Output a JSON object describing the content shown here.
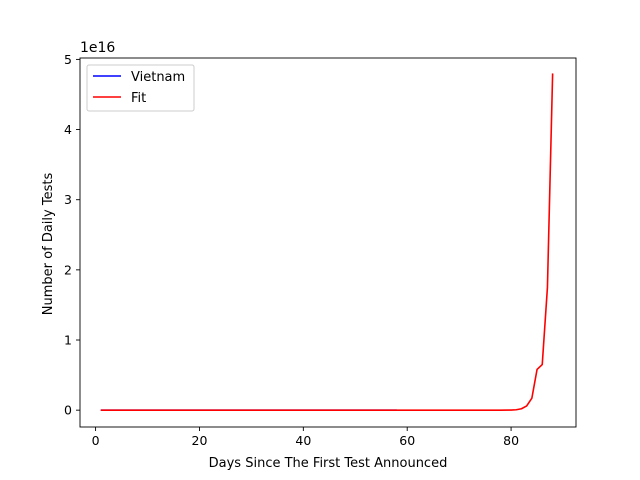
{
  "chart_data": {
    "type": "line",
    "title": "",
    "xlabel": "Days Since The First Test Announced",
    "ylabel": "Number of Daily Tests",
    "offset_text": "1e16",
    "xlim": [
      -3,
      92.5
    ],
    "ylim": [
      -0.24,
      5.02
    ],
    "y_scale_factor": 1e+16,
    "x_ticks": [
      0,
      20,
      40,
      60,
      80
    ],
    "y_ticks": [
      0,
      1,
      2,
      3,
      4,
      5
    ],
    "grid": false,
    "legend": {
      "position": "top-left",
      "entries": [
        "Vietnam",
        "Fit"
      ]
    },
    "series": [
      {
        "name": "Vietnam",
        "color": "#0000ff",
        "x": [
          1,
          58
        ],
        "y": [
          0,
          0
        ]
      },
      {
        "name": "Fit",
        "color": "#ff0000",
        "x": [
          1,
          58,
          70,
          78,
          80,
          81,
          82,
          83,
          84,
          85,
          86,
          87,
          88
        ],
        "y": [
          0,
          0,
          0,
          0,
          0.002,
          0.006,
          0.02,
          0.06,
          0.17,
          0.58,
          0.65,
          1.75,
          4.8
        ]
      }
    ]
  }
}
